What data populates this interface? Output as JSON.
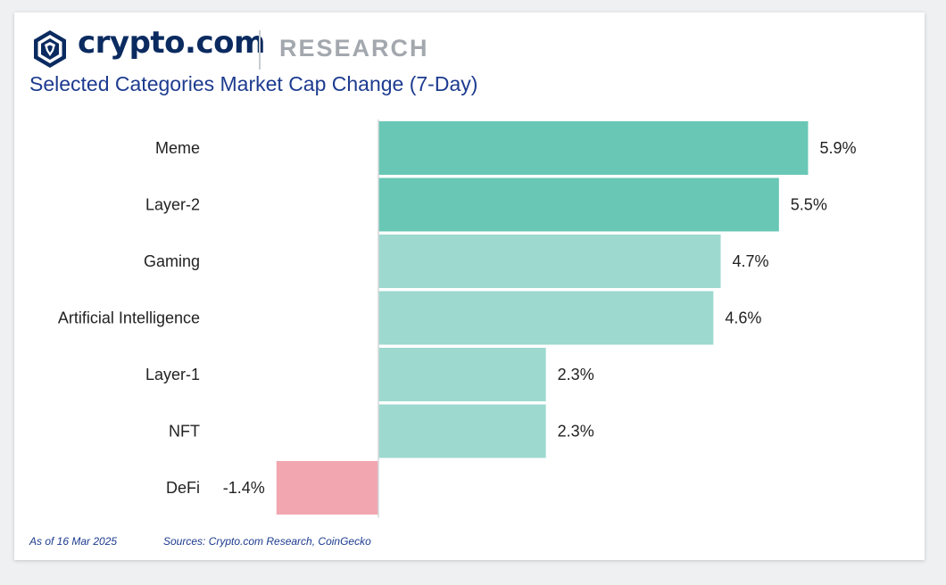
{
  "brand": {
    "name": "crypto.com",
    "section": "RESEARCH",
    "logo_icon": "crypto-com-lion-shield-icon",
    "color": "#0b2b60"
  },
  "title": "Selected Categories Market Cap Change (7-Day)",
  "footer": {
    "as_of": "As of 16 Mar 2025",
    "sources": "Sources: Crypto.com Research, CoinGecko"
  },
  "chart_data": {
    "type": "bar",
    "orientation": "horizontal",
    "title": "Selected Categories Market Cap Change (7-Day)",
    "categories": [
      "Meme",
      "Layer-2",
      "Gaming",
      "Artificial Intelligence",
      "Layer-1",
      "NFT",
      "DeFi"
    ],
    "values": [
      5.9,
      5.5,
      4.7,
      4.6,
      2.3,
      2.3,
      -1.4
    ],
    "labels": [
      "5.9%",
      "5.5%",
      "4.7%",
      "4.6%",
      "2.3%",
      "2.3%",
      "-1.4%"
    ],
    "unit": "%",
    "xlim": [
      -2.5,
      6.5
    ],
    "grid": false,
    "legend": "none",
    "colors": {
      "highlight": "#68c7b5",
      "positive": "#9dd9cf",
      "negative": "#f1a6b0",
      "axis": "#d5d7da"
    },
    "highlight_count": 2
  }
}
